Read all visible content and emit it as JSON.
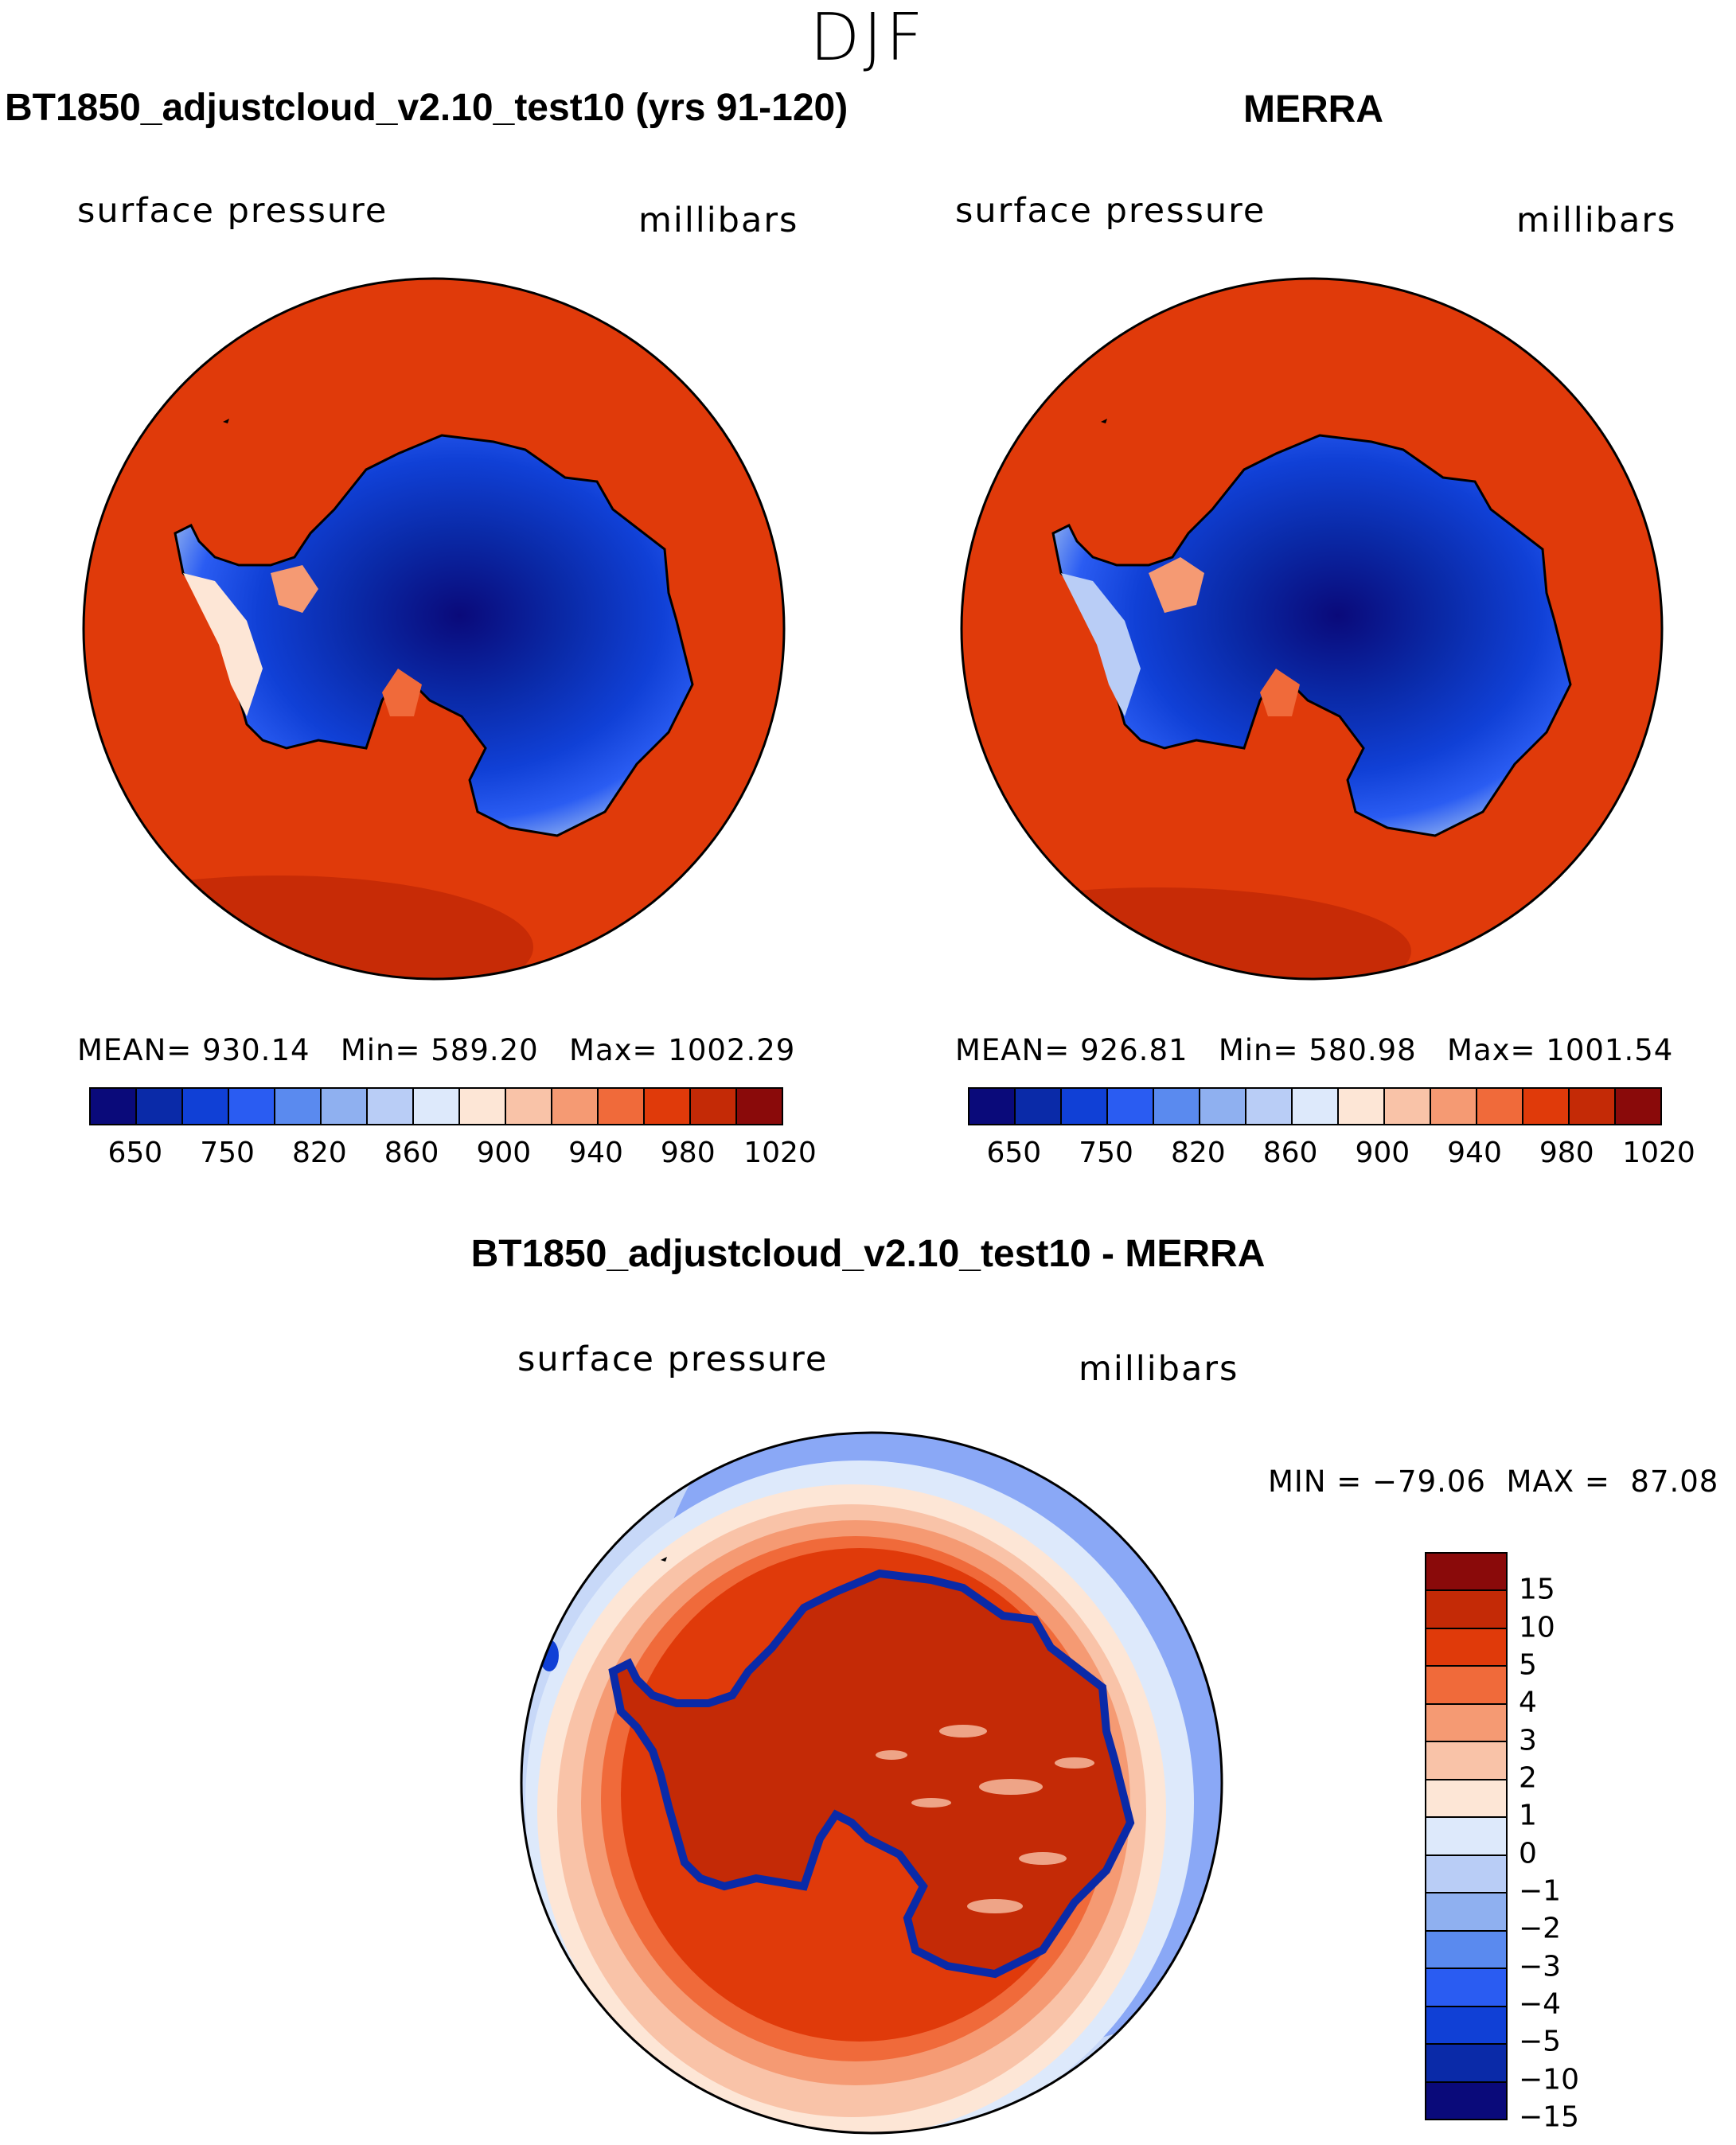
{
  "figure": {
    "season": "DJF",
    "panel_left": {
      "title": "BT1850_adjustcloud_v2.10_test10 (yrs 91-120)",
      "variable": "surface pressure",
      "units": "millibars",
      "mean_label": "MEAN=",
      "mean": "930.14",
      "min_label": "Min=",
      "min": "589.20",
      "max_label": "Max=",
      "max": "1002.29"
    },
    "panel_right": {
      "title": "MERRA",
      "variable": "surface pressure",
      "units": "millibars",
      "mean_label": "MEAN=",
      "mean": "926.81",
      "min_label": "Min=",
      "min": "580.98",
      "max_label": "Max=",
      "max": "1001.54"
    },
    "panel_diff": {
      "title": "BT1850_adjustcloud_v2.10_test10 - MERRA",
      "variable": "surface pressure",
      "units": "millibars",
      "min_label": "MIN =",
      "min": "−79.06",
      "max_label": "MAX =",
      "max": "87.08"
    }
  },
  "colorbars": {
    "abs_colors": [
      "#0a0a7a",
      "#0a2aa8",
      "#1040d6",
      "#2a5cf2",
      "#5a8aef",
      "#8fb0f0",
      "#b9cdf6",
      "#dde9fb",
      "#fde6d6",
      "#f9c3a8",
      "#f59a73",
      "#f06a3a",
      "#e03a0a",
      "#c42a06",
      "#8a0a0a"
    ],
    "abs_ticks": [
      "650",
      "750",
      "820",
      "860",
      "900",
      "940",
      "980",
      "1020"
    ],
    "diff_colors": [
      "#8a0a0a",
      "#c42a06",
      "#e03a0a",
      "#f06a3a",
      "#f59a73",
      "#f9c3a8",
      "#fde6d6",
      "#dde9fb",
      "#b9cdf6",
      "#8fb0f0",
      "#5a8aef",
      "#2a5cf2",
      "#1040d6",
      "#0a2aa8",
      "#0a0a7a"
    ],
    "diff_ticks": [
      "15",
      "10",
      "5",
      "4",
      "3",
      "2",
      "1",
      "0",
      "−1",
      "−2",
      "−3",
      "−4",
      "−5",
      "−10",
      "−15"
    ]
  },
  "colors": {
    "ocean_fill": "#e03a0a",
    "ocean_edge": "#c42a06",
    "land_low": "#dde9fb",
    "land_mid": "#1040d6",
    "land_high": "#0a0a7a"
  }
}
